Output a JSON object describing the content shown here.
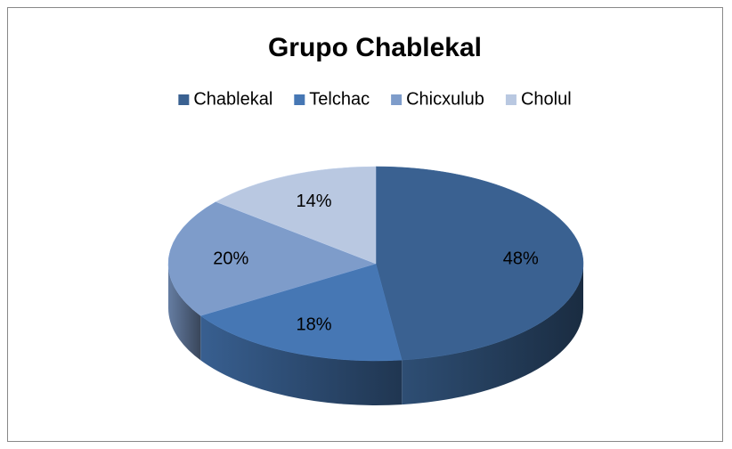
{
  "chart_data": {
    "type": "pie3d",
    "title": "Grupo Chablekal",
    "categories": [
      "Chablekal",
      "Telchac",
      "Chicxulub",
      "Cholul"
    ],
    "values": [
      48,
      18,
      20,
      14
    ],
    "value_labels": [
      "48%",
      "18%",
      "20%",
      "14%"
    ],
    "colors": [
      "#3a6191",
      "#4677b4",
      "#7e9cca",
      "#b9c8e1"
    ],
    "legend": "top"
  }
}
